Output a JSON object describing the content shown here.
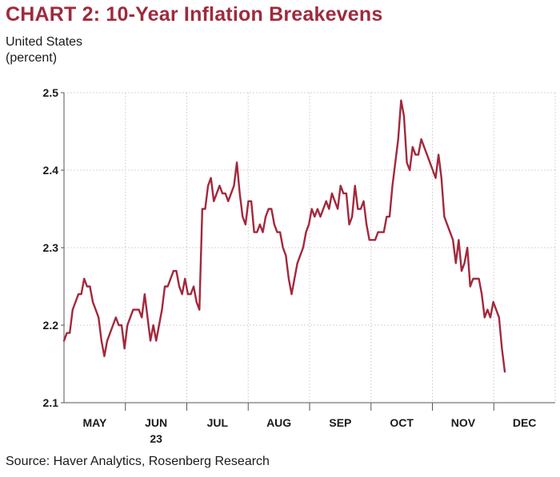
{
  "header": {
    "title": "CHART 2: 10-Year Inflation Breakevens",
    "subtitle_line1": "United States",
    "subtitle_line2": "(percent)"
  },
  "footer": {
    "source": "Source: Haver Analytics, Rosenberg Research"
  },
  "colors": {
    "title": "#9e2a3e",
    "line": "#a3283c",
    "grid": "#c8c8c8",
    "axis": "#555555"
  },
  "chart_data": {
    "type": "line",
    "title": "CHART 2: 10-Year Inflation Breakevens",
    "ylabel": "(percent)",
    "ylim": [
      2.1,
      2.5
    ],
    "yticks": [
      "2.5",
      "2.4",
      "2.3",
      "2.2",
      "2.1"
    ],
    "month_labels": [
      "MAY",
      "JUN",
      "JUL",
      "AUG",
      "SEP",
      "OCT",
      "NOV",
      "DEC"
    ],
    "year_label": "23",
    "grid": true,
    "series": [
      {
        "values": [
          2.18,
          2.19,
          2.19,
          2.22,
          2.23,
          2.24,
          2.24,
          2.26,
          2.25,
          2.25,
          2.23,
          2.22,
          2.21,
          2.18,
          2.16,
          2.18,
          2.19,
          2.2,
          2.21,
          2.2,
          2.2,
          2.17,
          2.2,
          2.21,
          2.22,
          2.22,
          2.22,
          2.21,
          2.24,
          2.21,
          2.18,
          2.2,
          2.18,
          2.2,
          2.22,
          2.25,
          2.25,
          2.26,
          2.27,
          2.27,
          2.25,
          2.24,
          2.26,
          2.24,
          2.24,
          2.25,
          2.23,
          2.22,
          2.35,
          2.35,
          2.38,
          2.39,
          2.36,
          2.37,
          2.38,
          2.37,
          2.37,
          2.36,
          2.37,
          2.38,
          2.41,
          2.37,
          2.34,
          2.33,
          2.36,
          2.36,
          2.32,
          2.32,
          2.33,
          2.32,
          2.34,
          2.35,
          2.35,
          2.33,
          2.32,
          2.32,
          2.3,
          2.29,
          2.26,
          2.24,
          2.26,
          2.28,
          2.29,
          2.3,
          2.32,
          2.33,
          2.35,
          2.34,
          2.35,
          2.34,
          2.35,
          2.36,
          2.35,
          2.37,
          2.36,
          2.35,
          2.38,
          2.37,
          2.37,
          2.33,
          2.34,
          2.38,
          2.35,
          2.35,
          2.36,
          2.33,
          2.31,
          2.31,
          2.31,
          2.32,
          2.32,
          2.32,
          2.34,
          2.34,
          2.38,
          2.41,
          2.44,
          2.49,
          2.47,
          2.41,
          2.4,
          2.43,
          2.42,
          2.42,
          2.44,
          2.43,
          2.42,
          2.41,
          2.4,
          2.39,
          2.42,
          2.39,
          2.34,
          2.33,
          2.32,
          2.31,
          2.28,
          2.31,
          2.27,
          2.28,
          2.3,
          2.25,
          2.26,
          2.26,
          2.26,
          2.24,
          2.21,
          2.22,
          2.21,
          2.23,
          2.22,
          2.21,
          2.17,
          2.14
        ]
      }
    ]
  }
}
